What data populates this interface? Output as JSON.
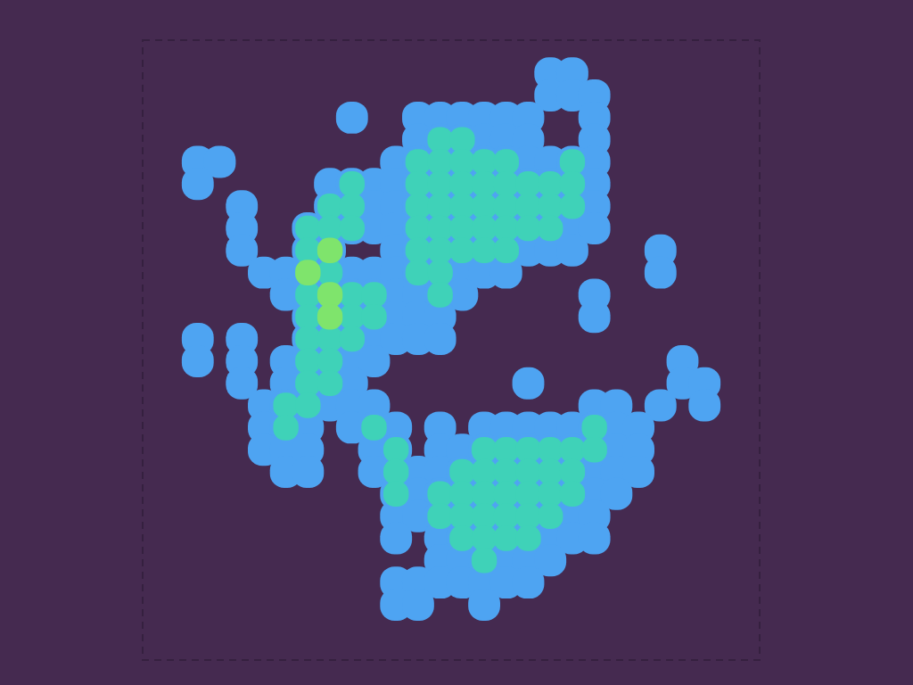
{
  "chart_data": {
    "type": "heatmap",
    "xlim": [
      0,
      28
    ],
    "ylim": [
      0,
      28
    ],
    "zlim": [
      0,
      3
    ],
    "tick_labels": false,
    "cells": [
      [
        0,
        0,
        0,
        0,
        0,
        0,
        0,
        0,
        0,
        0,
        0,
        0,
        0,
        0,
        0,
        0,
        0,
        0,
        0,
        0,
        0,
        0,
        0,
        0,
        0,
        0,
        0,
        0
      ],
      [
        0,
        0,
        0,
        0,
        0,
        0,
        0,
        0,
        0,
        0,
        0,
        0,
        0,
        0,
        0,
        0,
        0,
        0,
        1,
        1,
        0,
        0,
        0,
        0,
        0,
        0,
        0,
        0
      ],
      [
        0,
        0,
        0,
        0,
        0,
        0,
        0,
        0,
        0,
        0,
        0,
        0,
        0,
        0,
        0,
        0,
        0,
        0,
        1,
        1,
        1,
        0,
        0,
        0,
        0,
        0,
        0,
        0
      ],
      [
        0,
        0,
        0,
        0,
        0,
        0,
        0,
        0,
        0,
        1,
        0,
        0,
        1,
        1,
        1,
        1,
        1,
        1,
        0,
        0,
        1,
        0,
        0,
        0,
        0,
        0,
        0,
        0
      ],
      [
        0,
        0,
        0,
        0,
        0,
        0,
        0,
        0,
        0,
        0,
        0,
        0,
        1,
        2,
        2,
        1,
        1,
        1,
        0,
        0,
        1,
        0,
        0,
        0,
        0,
        0,
        0,
        0
      ],
      [
        0,
        0,
        1,
        1,
        0,
        0,
        0,
        0,
        0,
        0,
        0,
        1,
        2,
        2,
        2,
        2,
        2,
        1,
        1,
        2,
        1,
        0,
        0,
        0,
        0,
        0,
        0,
        0
      ],
      [
        0,
        0,
        1,
        0,
        0,
        0,
        0,
        0,
        1,
        2,
        1,
        1,
        2,
        2,
        2,
        2,
        2,
        2,
        2,
        2,
        1,
        0,
        0,
        0,
        0,
        0,
        0,
        0
      ],
      [
        0,
        0,
        0,
        0,
        1,
        0,
        0,
        0,
        2,
        2,
        1,
        1,
        2,
        2,
        2,
        2,
        2,
        2,
        2,
        2,
        1,
        0,
        0,
        0,
        0,
        0,
        0,
        0
      ],
      [
        0,
        0,
        0,
        0,
        1,
        0,
        0,
        2,
        2,
        2,
        1,
        1,
        2,
        2,
        2,
        2,
        2,
        2,
        2,
        1,
        1,
        0,
        0,
        0,
        0,
        0,
        0,
        0
      ],
      [
        0,
        0,
        0,
        0,
        1,
        0,
        0,
        2,
        3,
        0,
        0,
        1,
        2,
        2,
        2,
        2,
        2,
        1,
        1,
        1,
        0,
        0,
        0,
        1,
        0,
        0,
        0,
        0
      ],
      [
        0,
        0,
        0,
        0,
        0,
        1,
        1,
        3,
        2,
        1,
        1,
        1,
        2,
        2,
        1,
        1,
        1,
        0,
        0,
        0,
        0,
        0,
        0,
        1,
        0,
        0,
        0,
        0
      ],
      [
        0,
        0,
        0,
        0,
        0,
        0,
        1,
        2,
        3,
        2,
        2,
        1,
        1,
        2,
        1,
        0,
        0,
        0,
        0,
        0,
        1,
        0,
        0,
        0,
        0,
        0,
        0,
        0
      ],
      [
        0,
        0,
        0,
        0,
        0,
        0,
        0,
        2,
        3,
        2,
        2,
        1,
        1,
        1,
        0,
        0,
        0,
        0,
        0,
        0,
        1,
        0,
        0,
        0,
        0,
        0,
        0,
        0
      ],
      [
        0,
        0,
        1,
        0,
        1,
        0,
        0,
        2,
        2,
        2,
        1,
        1,
        1,
        1,
        0,
        0,
        0,
        0,
        0,
        0,
        0,
        0,
        0,
        0,
        0,
        0,
        0,
        0
      ],
      [
        0,
        0,
        1,
        0,
        1,
        0,
        1,
        2,
        2,
        1,
        1,
        0,
        0,
        0,
        0,
        0,
        0,
        0,
        0,
        0,
        0,
        0,
        0,
        0,
        1,
        0,
        0,
        0
      ],
      [
        0,
        0,
        0,
        0,
        1,
        0,
        1,
        2,
        2,
        1,
        0,
        0,
        0,
        0,
        0,
        0,
        0,
        1,
        0,
        0,
        0,
        0,
        0,
        0,
        1,
        1,
        0,
        0
      ],
      [
        0,
        0,
        0,
        0,
        0,
        1,
        2,
        2,
        1,
        1,
        1,
        0,
        0,
        0,
        0,
        0,
        0,
        0,
        0,
        0,
        1,
        1,
        0,
        1,
        0,
        1,
        0,
        0
      ],
      [
        0,
        0,
        0,
        0,
        0,
        1,
        2,
        1,
        0,
        1,
        2,
        1,
        0,
        1,
        0,
        1,
        1,
        1,
        1,
        1,
        2,
        1,
        1,
        0,
        0,
        0,
        0,
        0
      ],
      [
        0,
        0,
        0,
        0,
        0,
        1,
        1,
        1,
        0,
        0,
        1,
        2,
        0,
        1,
        1,
        2,
        2,
        2,
        2,
        2,
        2,
        1,
        1,
        0,
        0,
        0,
        0,
        0
      ],
      [
        0,
        0,
        0,
        0,
        0,
        0,
        1,
        1,
        0,
        0,
        1,
        2,
        1,
        1,
        2,
        2,
        2,
        2,
        2,
        2,
        1,
        1,
        1,
        0,
        0,
        0,
        0,
        0
      ],
      [
        0,
        0,
        0,
        0,
        0,
        0,
        0,
        0,
        0,
        0,
        0,
        2,
        1,
        2,
        2,
        2,
        2,
        2,
        2,
        2,
        1,
        1,
        0,
        0,
        0,
        0,
        0,
        0
      ],
      [
        0,
        0,
        0,
        0,
        0,
        0,
        0,
        0,
        0,
        0,
        0,
        1,
        1,
        2,
        2,
        2,
        2,
        2,
        2,
        1,
        1,
        0,
        0,
        0,
        0,
        0,
        0,
        0
      ],
      [
        0,
        0,
        0,
        0,
        0,
        0,
        0,
        0,
        0,
        0,
        0,
        1,
        0,
        1,
        2,
        2,
        2,
        2,
        1,
        1,
        1,
        0,
        0,
        0,
        0,
        0,
        0,
        0
      ],
      [
        0,
        0,
        0,
        0,
        0,
        0,
        0,
        0,
        0,
        0,
        0,
        0,
        0,
        1,
        1,
        2,
        1,
        1,
        1,
        0,
        0,
        0,
        0,
        0,
        0,
        0,
        0,
        0
      ],
      [
        0,
        0,
        0,
        0,
        0,
        0,
        0,
        0,
        0,
        0,
        0,
        1,
        1,
        1,
        1,
        1,
        1,
        1,
        0,
        0,
        0,
        0,
        0,
        0,
        0,
        0,
        0,
        0
      ],
      [
        0,
        0,
        0,
        0,
        0,
        0,
        0,
        0,
        0,
        0,
        0,
        1,
        1,
        0,
        0,
        1,
        0,
        0,
        0,
        0,
        0,
        0,
        0,
        0,
        0,
        0,
        0,
        0
      ],
      [
        0,
        0,
        0,
        0,
        0,
        0,
        0,
        0,
        0,
        0,
        0,
        0,
        0,
        0,
        0,
        0,
        0,
        0,
        0,
        0,
        0,
        0,
        0,
        0,
        0,
        0,
        0,
        0
      ],
      [
        0,
        0,
        0,
        0,
        0,
        0,
        0,
        0,
        0,
        0,
        0,
        0,
        0,
        0,
        0,
        0,
        0,
        0,
        0,
        0,
        0,
        0,
        0,
        0,
        0,
        0,
        0,
        0
      ]
    ]
  }
}
